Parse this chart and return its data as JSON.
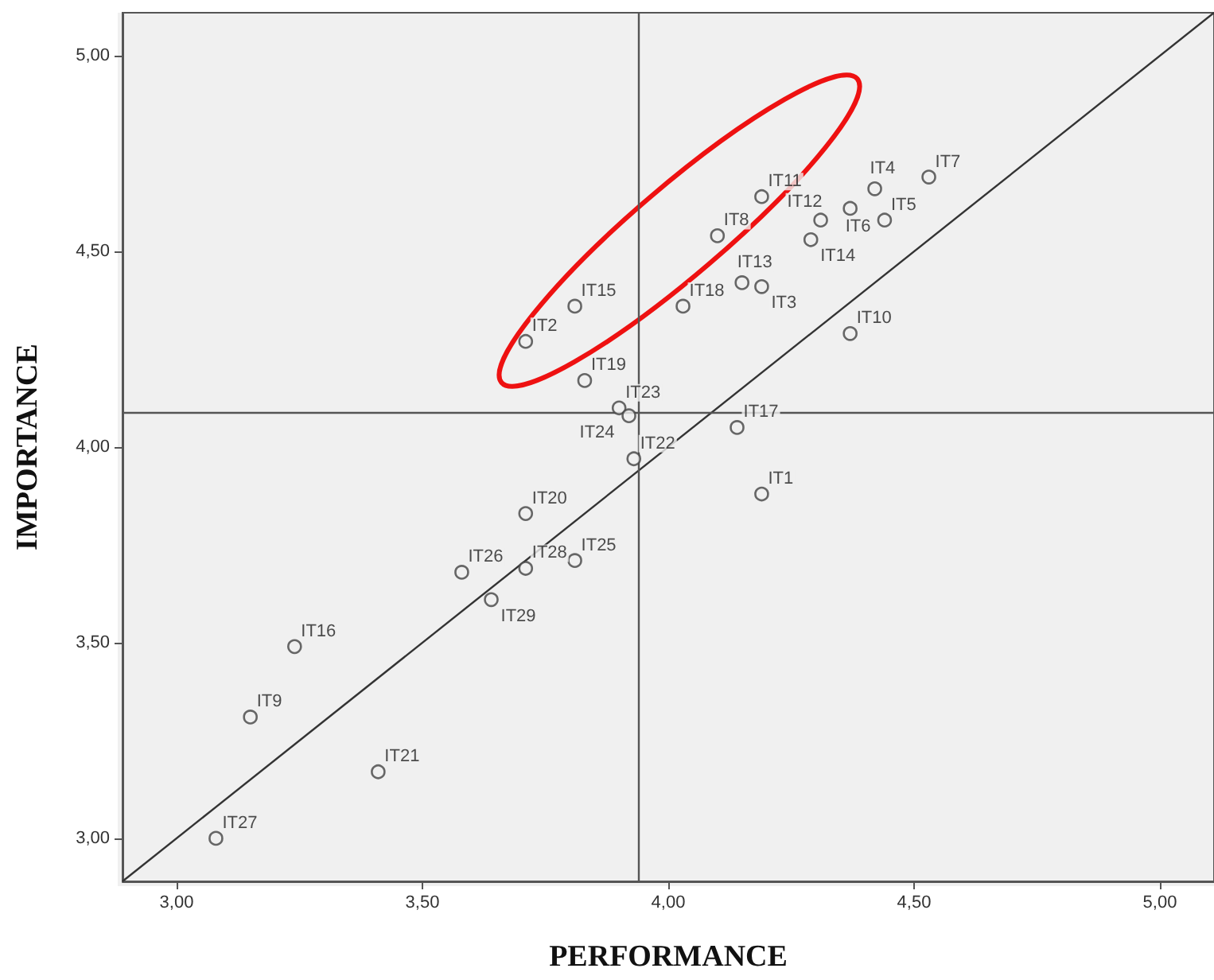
{
  "chart_data": {
    "type": "scatter",
    "xlabel": "PERFORMANCE",
    "ylabel": "IMPORTANCE",
    "xlim": [
      2.89,
      5.11
    ],
    "ylim": [
      2.89,
      5.11
    ],
    "xticks": [
      {
        "value": 3,
        "label": "3,00"
      },
      {
        "value": 3.5,
        "label": "3,50"
      },
      {
        "value": 4,
        "label": "4,00"
      },
      {
        "value": 4.5,
        "label": "4,50"
      },
      {
        "value": 5,
        "label": "5,00"
      }
    ],
    "yticks": [
      {
        "value": 3,
        "label": "3,00"
      },
      {
        "value": 3.5,
        "label": "3,50"
      },
      {
        "value": 4,
        "label": "4,00"
      },
      {
        "value": 4.5,
        "label": "4,50"
      },
      {
        "value": 5,
        "label": "5,00"
      }
    ],
    "marker": "circle",
    "grid": false,
    "series": [
      {
        "color": "#444444",
        "x": [
          4.19,
          3.71,
          4.19,
          4.42,
          4.44,
          4.37,
          4.53,
          4.1,
          3.15,
          4.37,
          4.19,
          4.31,
          4.15,
          4.29,
          3.81,
          3.24,
          4.14,
          4.03,
          3.83,
          3.71,
          3.41,
          3.93,
          3.9,
          3.92,
          3.81,
          3.58,
          3.08,
          3.71,
          3.64
        ],
        "values": [
          3.88,
          4.27,
          4.41,
          4.66,
          4.58,
          4.61,
          4.69,
          4.54,
          3.31,
          4.29,
          4.64,
          4.58,
          4.42,
          4.53,
          4.36,
          3.49,
          4.05,
          4.36,
          4.17,
          3.83,
          3.17,
          3.97,
          4.1,
          4.08,
          3.71,
          3.68,
          3.0,
          3.69,
          3.61
        ]
      },
      {
        "type": "line",
        "color": "#333333",
        "x": [
          2.89,
          5.11
        ],
        "values": [
          2.89,
          5.11
        ],
        "marker": "none",
        "line_style": "solid"
      }
    ],
    "annotations": [
      {
        "text": "IT1",
        "x": 4.19,
        "y": 3.88
      },
      {
        "text": "IT2",
        "x": 3.71,
        "y": 4.27
      },
      {
        "text": "IT3",
        "x": 4.19,
        "y": 4.41
      },
      {
        "text": "IT4",
        "x": 4.42,
        "y": 4.66
      },
      {
        "text": "IT5",
        "x": 4.44,
        "y": 4.58
      },
      {
        "text": "IT6",
        "x": 4.37,
        "y": 4.61
      },
      {
        "text": "IT7",
        "x": 4.53,
        "y": 4.69
      },
      {
        "text": "IT8",
        "x": 4.1,
        "y": 4.54
      },
      {
        "text": "IT9",
        "x": 3.15,
        "y": 3.31
      },
      {
        "text": "IT10",
        "x": 4.37,
        "y": 4.29
      },
      {
        "text": "IT11",
        "x": 4.19,
        "y": 4.64
      },
      {
        "text": "IT12",
        "x": 4.31,
        "y": 4.58
      },
      {
        "text": "IT13",
        "x": 4.15,
        "y": 4.42
      },
      {
        "text": "IT14",
        "x": 4.29,
        "y": 4.53
      },
      {
        "text": "IT15",
        "x": 3.81,
        "y": 4.36
      },
      {
        "text": "IT16",
        "x": 3.24,
        "y": 3.49
      },
      {
        "text": "IT17",
        "x": 4.14,
        "y": 4.05
      },
      {
        "text": "IT18",
        "x": 4.03,
        "y": 4.36
      },
      {
        "text": "IT19",
        "x": 3.83,
        "y": 4.17
      },
      {
        "text": "IT20",
        "x": 3.71,
        "y": 3.83
      },
      {
        "text": "IT21",
        "x": 3.41,
        "y": 3.17
      },
      {
        "text": "IT22",
        "x": 3.93,
        "y": 3.97
      },
      {
        "text": "IT23",
        "x": 3.9,
        "y": 4.1
      },
      {
        "text": "IT24",
        "x": 3.92,
        "y": 4.08
      },
      {
        "text": "IT25",
        "x": 3.81,
        "y": 3.71
      },
      {
        "text": "IT26",
        "x": 3.58,
        "y": 3.68
      },
      {
        "text": "IT27",
        "x": 3.08,
        "y": 3.0
      },
      {
        "text": "IT28",
        "x": 3.71,
        "y": 3.69
      },
      {
        "text": "IT29",
        "x": 3.64,
        "y": 3.61
      }
    ],
    "ref_lines": [
      {
        "axis": "x",
        "value": 3.94,
        "color": "#555555"
      },
      {
        "axis": "y",
        "value": 4.09,
        "color": "#555555"
      }
    ]
  }
}
